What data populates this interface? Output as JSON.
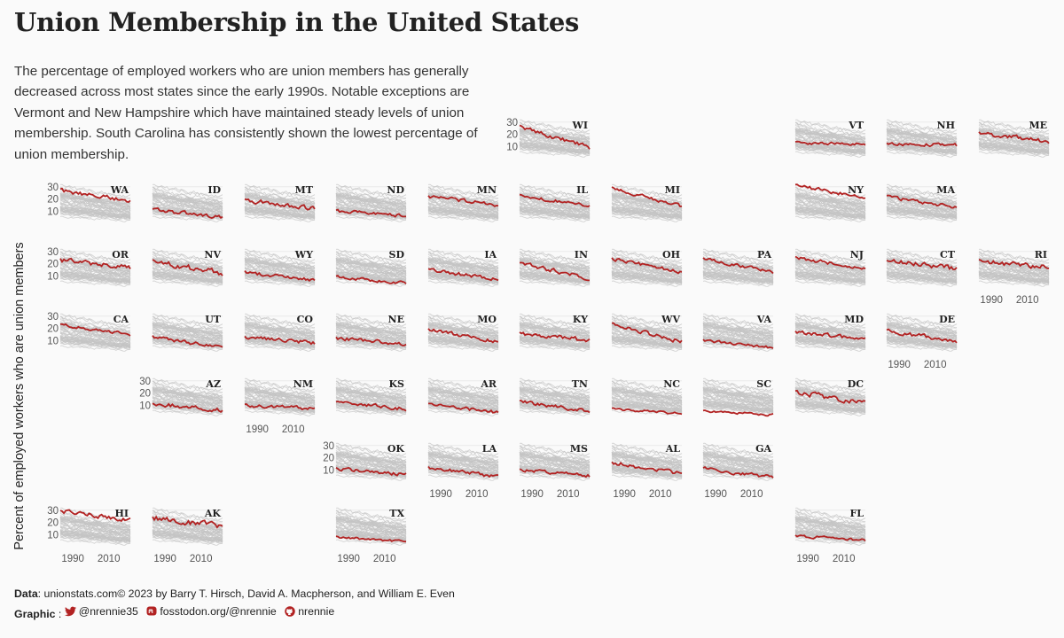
{
  "title": "Union Membership in the United States",
  "subtitle": "The percentage of employed workers who are union members has generally decreased across most states since the early 1990s. Notable exceptions are Vermont and New Hampshire which have maintained steady levels of union membership. South Carolina has consistently shown the lowest percentage of union membership.",
  "footer": {
    "data_label": "Data",
    "data_text": ": unionstats.com© 2023 by Barry  T. Hirsch, David  A. Macpherson, and William E.  Even",
    "graphic_label": "Graphic",
    "graphic_sep": " : ",
    "twitter_handle": "@nrennie35",
    "mastodon_handle": "fosstodon.org/@nrennie",
    "github_handle": "nrennie",
    "icons": [
      "twitter-icon",
      "mastodon-icon",
      "github-icon"
    ],
    "icon_color": "#b22222"
  },
  "chart_data": {
    "type": "line",
    "layout": "small-multiples-geofacet",
    "ylabel": "Percent of employed workers who are union members",
    "xlabel": "",
    "x_start": 1983,
    "x_end": 2022,
    "x_ticks": [
      1990,
      2010
    ],
    "y_ticks": [
      10,
      20,
      30
    ],
    "ylim": [
      0,
      32
    ],
    "highlight_color": "#b22222",
    "background_color": "#c4c4c4",
    "states": [
      {
        "abbr": "WI",
        "row": 0,
        "col": 5,
        "start": 26,
        "end": 9,
        "noise": 1.6
      },
      {
        "abbr": "VT",
        "row": 0,
        "col": 8,
        "start": 13,
        "end": 12,
        "noise": 1.0
      },
      {
        "abbr": "NH",
        "row": 0,
        "col": 9,
        "start": 12,
        "end": 11,
        "noise": 1.2
      },
      {
        "abbr": "ME",
        "row": 0,
        "col": 10,
        "start": 21,
        "end": 14,
        "noise": 1.5
      },
      {
        "abbr": "WA",
        "row": 1,
        "col": 0,
        "start": 27,
        "end": 18,
        "noise": 1.4
      },
      {
        "abbr": "ID",
        "row": 1,
        "col": 1,
        "start": 11,
        "end": 5,
        "noise": 1.3
      },
      {
        "abbr": "MT",
        "row": 1,
        "col": 2,
        "start": 19,
        "end": 12,
        "noise": 1.5
      },
      {
        "abbr": "ND",
        "row": 1,
        "col": 3,
        "start": 10,
        "end": 6,
        "noise": 1.2
      },
      {
        "abbr": "MN",
        "row": 1,
        "col": 4,
        "start": 22,
        "end": 15,
        "noise": 1.2
      },
      {
        "abbr": "IL",
        "row": 1,
        "col": 5,
        "start": 23,
        "end": 14,
        "noise": 1.2
      },
      {
        "abbr": "MI",
        "row": 1,
        "col": 6,
        "start": 29,
        "end": 14,
        "noise": 1.2
      },
      {
        "abbr": "NY",
        "row": 1,
        "col": 8,
        "start": 31,
        "end": 21,
        "noise": 1.2
      },
      {
        "abbr": "MA",
        "row": 1,
        "col": 9,
        "start": 22,
        "end": 13,
        "noise": 1.2
      },
      {
        "abbr": "OR",
        "row": 2,
        "col": 0,
        "start": 23,
        "end": 17,
        "noise": 1.8
      },
      {
        "abbr": "NV",
        "row": 2,
        "col": 1,
        "start": 22,
        "end": 12,
        "noise": 2.0
      },
      {
        "abbr": "WY",
        "row": 2,
        "col": 2,
        "start": 13,
        "end": 6,
        "noise": 1.3
      },
      {
        "abbr": "SD",
        "row": 2,
        "col": 3,
        "start": 9,
        "end": 4,
        "noise": 1.0
      },
      {
        "abbr": "IA",
        "row": 2,
        "col": 4,
        "start": 15,
        "end": 7,
        "noise": 1.3
      },
      {
        "abbr": "IN",
        "row": 2,
        "col": 5,
        "start": 20,
        "end": 8,
        "noise": 1.5
      },
      {
        "abbr": "OH",
        "row": 2,
        "col": 6,
        "start": 24,
        "end": 13,
        "noise": 1.2
      },
      {
        "abbr": "PA",
        "row": 2,
        "col": 7,
        "start": 24,
        "end": 13,
        "noise": 1.2
      },
      {
        "abbr": "NJ",
        "row": 2,
        "col": 8,
        "start": 25,
        "end": 16,
        "noise": 1.3
      },
      {
        "abbr": "CT",
        "row": 2,
        "col": 9,
        "start": 22,
        "end": 16,
        "noise": 1.8
      },
      {
        "abbr": "RI",
        "row": 2,
        "col": 10,
        "start": 22,
        "end": 17,
        "noise": 1.8
      },
      {
        "abbr": "CA",
        "row": 3,
        "col": 0,
        "start": 23,
        "end": 15,
        "noise": 1.0
      },
      {
        "abbr": "UT",
        "row": 3,
        "col": 1,
        "start": 13,
        "end": 4,
        "noise": 1.3
      },
      {
        "abbr": "CO",
        "row": 3,
        "col": 2,
        "start": 13,
        "end": 8,
        "noise": 1.3
      },
      {
        "abbr": "NE",
        "row": 3,
        "col": 3,
        "start": 12,
        "end": 7,
        "noise": 1.3
      },
      {
        "abbr": "MO",
        "row": 3,
        "col": 4,
        "start": 19,
        "end": 9,
        "noise": 1.3
      },
      {
        "abbr": "KY",
        "row": 3,
        "col": 5,
        "start": 16,
        "end": 10,
        "noise": 1.5
      },
      {
        "abbr": "WV",
        "row": 3,
        "col": 6,
        "start": 23,
        "end": 9,
        "noise": 1.5
      },
      {
        "abbr": "VA",
        "row": 3,
        "col": 7,
        "start": 10,
        "end": 4,
        "noise": 1.0
      },
      {
        "abbr": "MD",
        "row": 3,
        "col": 8,
        "start": 17,
        "end": 11,
        "noise": 1.3
      },
      {
        "abbr": "DE",
        "row": 3,
        "col": 9,
        "start": 18,
        "end": 9,
        "noise": 1.5
      },
      {
        "abbr": "AZ",
        "row": 4,
        "col": 1,
        "start": 11,
        "end": 6,
        "noise": 1.5
      },
      {
        "abbr": "NM",
        "row": 4,
        "col": 2,
        "start": 10,
        "end": 7,
        "noise": 1.2
      },
      {
        "abbr": "KS",
        "row": 4,
        "col": 3,
        "start": 12,
        "end": 7,
        "noise": 1.3
      },
      {
        "abbr": "AR",
        "row": 4,
        "col": 4,
        "start": 11,
        "end": 4,
        "noise": 1.2
      },
      {
        "abbr": "TN",
        "row": 4,
        "col": 5,
        "start": 13,
        "end": 5,
        "noise": 1.2
      },
      {
        "abbr": "NC",
        "row": 4,
        "col": 6,
        "start": 7,
        "end": 3,
        "noise": 0.8
      },
      {
        "abbr": "SC",
        "row": 4,
        "col": 7,
        "start": 5,
        "end": 2,
        "noise": 0.8
      },
      {
        "abbr": "DC",
        "row": 4,
        "col": 8,
        "start": 21,
        "end": 11,
        "noise": 2.0
      },
      {
        "abbr": "OK",
        "row": 5,
        "col": 3,
        "start": 11,
        "end": 6,
        "noise": 1.2
      },
      {
        "abbr": "LA",
        "row": 5,
        "col": 4,
        "start": 12,
        "end": 4,
        "noise": 1.3
      },
      {
        "abbr": "MS",
        "row": 5,
        "col": 5,
        "start": 10,
        "end": 5,
        "noise": 1.2
      },
      {
        "abbr": "AL",
        "row": 5,
        "col": 6,
        "start": 16,
        "end": 7,
        "noise": 1.5
      },
      {
        "abbr": "GA",
        "row": 5,
        "col": 7,
        "start": 11,
        "end": 4,
        "noise": 1.3
      },
      {
        "abbr": "HI",
        "row": 6,
        "col": 0,
        "start": 29,
        "end": 22,
        "noise": 1.5
      },
      {
        "abbr": "AK",
        "row": 6,
        "col": 1,
        "start": 24,
        "end": 17,
        "noise": 2.0
      },
      {
        "abbr": "TX",
        "row": 6,
        "col": 3,
        "start": 8,
        "end": 4,
        "noise": 0.8
      },
      {
        "abbr": "FL",
        "row": 6,
        "col": 8,
        "start": 9,
        "end": 5,
        "noise": 1.0
      }
    ],
    "y_axis_panels": [
      "WI",
      "WA",
      "OR",
      "CA",
      "AZ",
      "OK",
      "HI"
    ],
    "x_axis_panels": [
      "RI",
      "DE",
      "NM",
      "LA",
      "MS",
      "AL",
      "GA",
      "HI",
      "AK",
      "TX",
      "FL"
    ]
  }
}
